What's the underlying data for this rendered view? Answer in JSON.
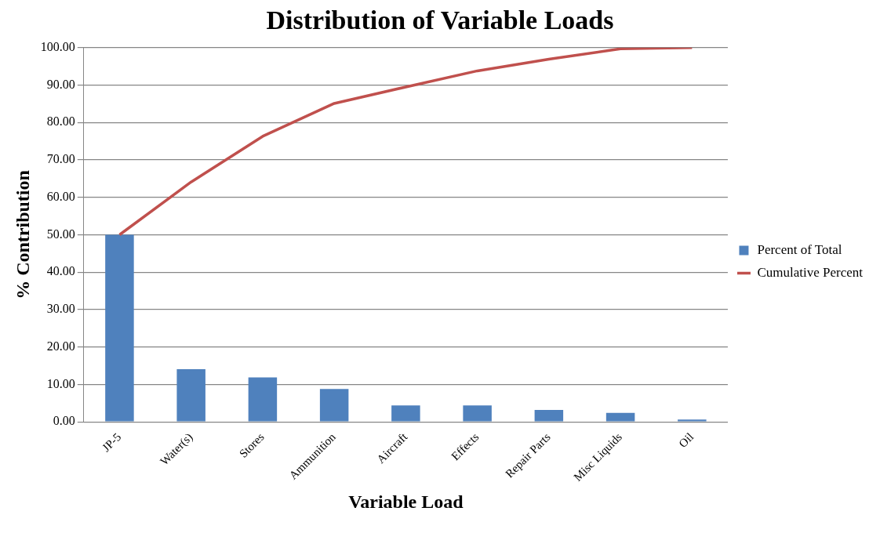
{
  "chart_data": {
    "type": "bar",
    "title": "Distribution of Variable Loads",
    "xlabel": "Variable Load",
    "ylabel": "% Contribution",
    "categories": [
      "JP-5",
      "Water(s)",
      "Stores",
      "Ammunition",
      "Aircraft",
      "Effects",
      "Repair Parts",
      "Misc Liquids",
      "Oil"
    ],
    "series": [
      {
        "name": "Percent of Total",
        "color": "#4f81bd",
        "values": [
          50,
          14.1,
          11.9,
          8.8,
          4.4,
          4.4,
          3.2,
          2.4,
          0.6
        ]
      },
      {
        "name": "Cumulative Percent",
        "type": "line",
        "color": "#c0504d",
        "values": [
          50,
          64.1,
          76.3,
          85.1,
          89.5,
          93.8,
          96.9,
          99.7,
          100
        ]
      }
    ],
    "ylim": [
      0,
      100
    ],
    "yticks": [
      {
        "value": 0,
        "label": "0.00"
      },
      {
        "value": 10,
        "label": "10.00"
      },
      {
        "value": 20,
        "label": "20.00"
      },
      {
        "value": 30,
        "label": "30.00"
      },
      {
        "value": 40,
        "label": "40.00"
      },
      {
        "value": 50,
        "label": "50.00"
      },
      {
        "value": 60,
        "label": "60.00"
      },
      {
        "value": 70,
        "label": "70.00"
      },
      {
        "value": 80,
        "label": "80.00"
      },
      {
        "value": 90,
        "label": "90.00"
      },
      {
        "value": 100,
        "label": "100.00"
      }
    ],
    "grid": "y",
    "legend": "right",
    "marker": "none"
  }
}
